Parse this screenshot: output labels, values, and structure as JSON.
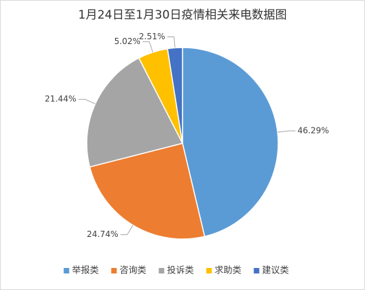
{
  "chart_data": {
    "type": "pie",
    "title": "1月24日至1月30日疫情相关来电数据图",
    "categories": [
      "举报类",
      "咨询类",
      "投诉类",
      "求助类",
      "建议类"
    ],
    "values": [
      46.29,
      24.74,
      21.44,
      5.02,
      2.51
    ],
    "value_labels": [
      "46.29%",
      "24.74%",
      "21.44%",
      "5.02%",
      "2.51%"
    ],
    "colors": [
      "#5b9bd5",
      "#ed7d31",
      "#a5a5a5",
      "#ffc000",
      "#4472c4"
    ],
    "legend": "bottom"
  }
}
